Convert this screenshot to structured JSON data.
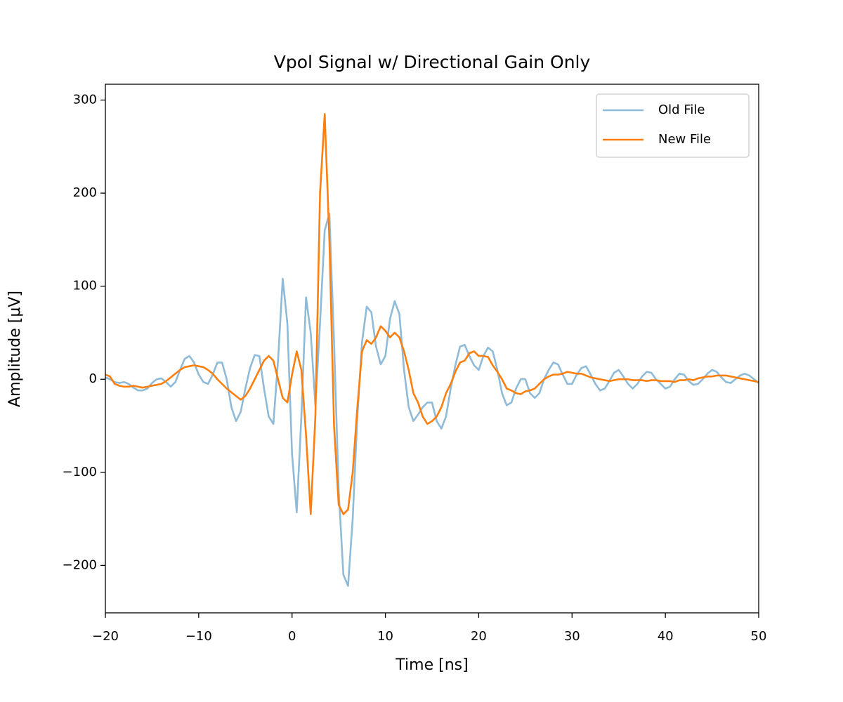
{
  "chart_data": {
    "type": "line",
    "title": "Vpol Signal w/ Directional Gain Only",
    "x_label": "Time [ns]",
    "y_label": "Amplitude [μV]",
    "x": [
      -20,
      -19.5,
      -19,
      -18.5,
      -18,
      -17.5,
      -17,
      -16.5,
      -16,
      -15.5,
      -15,
      -14.5,
      -14,
      -13.5,
      -13,
      -12.5,
      -12,
      -11.5,
      -11,
      -10.5,
      -10,
      -9.5,
      -9,
      -8.5,
      -8,
      -7.5,
      -7,
      -6.5,
      -6,
      -5.5,
      -5,
      -4.5,
      -4,
      -3.5,
      -3,
      -2.5,
      -2,
      -1.5,
      -1,
      -0.5,
      0,
      0.5,
      1,
      1.5,
      2,
      2.5,
      3,
      3.5,
      4,
      4.5,
      5,
      5.5,
      6,
      6.5,
      7,
      7.5,
      8,
      8.5,
      9,
      9.5,
      10,
      10.5,
      11,
      11.5,
      12,
      12.5,
      13,
      13.5,
      14,
      14.5,
      15,
      15.5,
      16,
      16.5,
      17,
      17.5,
      18,
      18.5,
      19,
      19.5,
      20,
      20.5,
      21,
      21.5,
      22,
      22.5,
      23,
      23.5,
      24,
      24.5,
      25,
      25.5,
      26,
      26.5,
      27,
      27.5,
      28,
      28.5,
      29,
      29.5,
      30,
      30.5,
      31,
      31.5,
      32,
      32.5,
      33,
      33.5,
      34,
      34.5,
      35,
      35.5,
      36,
      36.5,
      37,
      37.5,
      38,
      38.5,
      39,
      39.5,
      40,
      40.5,
      41,
      41.5,
      42,
      42.5,
      43,
      43.5,
      44,
      44.5,
      45,
      45.5,
      46,
      46.5,
      47,
      47.5,
      48,
      48.5,
      49,
      49.5,
      50
    ],
    "series": [
      {
        "name": "Old File",
        "color": "#1f77b4",
        "alpha": 0.5,
        "values": [
          2,
          0,
          -3,
          -4,
          -3,
          -5,
          -9,
          -12,
          -12,
          -10,
          -4,
          0,
          1,
          -3,
          -8,
          -3,
          10,
          22,
          25,
          18,
          5,
          -3,
          -5,
          5,
          18,
          18,
          0,
          -30,
          -45,
          -35,
          -10,
          12,
          26,
          25,
          -10,
          -40,
          -48,
          20,
          108,
          60,
          -80,
          -143,
          -40,
          88,
          50,
          -28,
          60,
          160,
          178,
          40,
          -120,
          -210,
          -222,
          -150,
          -40,
          40,
          78,
          72,
          35,
          16,
          25,
          65,
          84,
          70,
          10,
          -30,
          -45,
          -38,
          -30,
          -25,
          -25,
          -45,
          -53,
          -40,
          -10,
          15,
          35,
          37,
          25,
          15,
          10,
          25,
          34,
          30,
          10,
          -15,
          -28,
          -25,
          -10,
          0,
          0,
          -15,
          -20,
          -15,
          0,
          10,
          18,
          16,
          5,
          -5,
          -5,
          5,
          12,
          14,
          5,
          -5,
          -12,
          -10,
          -2,
          7,
          10,
          3,
          -5,
          -10,
          -5,
          3,
          8,
          7,
          0,
          -5,
          -10,
          -8,
          0,
          6,
          5,
          -2,
          -6,
          -5,
          0,
          6,
          10,
          8,
          2,
          -3,
          -4,
          0,
          4,
          6,
          4,
          0,
          -4
        ]
      },
      {
        "name": "New File",
        "color": "#ff7f0e",
        "alpha": 1,
        "values": [
          5,
          3,
          -5,
          -7,
          -8,
          -8,
          -7,
          -8,
          -9,
          -8,
          -7,
          -6,
          -5,
          -2,
          2,
          6,
          10,
          13,
          14,
          15,
          14,
          13,
          10,
          6,
          0,
          -5,
          -10,
          -14,
          -18,
          -22,
          -18,
          -10,
          0,
          10,
          20,
          25,
          20,
          0,
          -20,
          -25,
          5,
          30,
          10,
          -60,
          -145,
          -40,
          200,
          285,
          150,
          -50,
          -135,
          -145,
          -140,
          -100,
          -30,
          30,
          42,
          38,
          45,
          57,
          52,
          45,
          50,
          45,
          30,
          10,
          -15,
          -25,
          -40,
          -48,
          -45,
          -40,
          -30,
          -15,
          -5,
          8,
          18,
          20,
          28,
          30,
          25,
          25,
          24,
          15,
          8,
          0,
          -10,
          -12,
          -15,
          -16,
          -13,
          -12,
          -10,
          -5,
          0,
          3,
          5,
          5,
          6,
          8,
          7,
          6,
          6,
          4,
          2,
          1,
          0,
          -1,
          -2,
          -1,
          0,
          0,
          0,
          -1,
          -1,
          -1,
          -2,
          -1,
          -1,
          -2,
          -2,
          -2,
          -3,
          -1,
          -1,
          0,
          -1,
          1,
          2,
          3,
          3,
          4,
          4,
          4,
          3,
          2,
          1,
          0,
          -1,
          -2,
          -3
        ]
      }
    ],
    "xlim": [
      -20,
      50
    ],
    "xticks": [
      {
        "value": -20,
        "label": "−20"
      },
      {
        "value": -10,
        "label": "−10"
      },
      0,
      10,
      20,
      30,
      40,
      50
    ],
    "ylim": [
      -251,
      317
    ],
    "yticks": [
      {
        "value": -200,
        "label": "−200"
      },
      {
        "value": -100,
        "label": "−100"
      },
      0,
      100,
      200,
      300
    ],
    "grid": false,
    "legend": "upper right"
  }
}
